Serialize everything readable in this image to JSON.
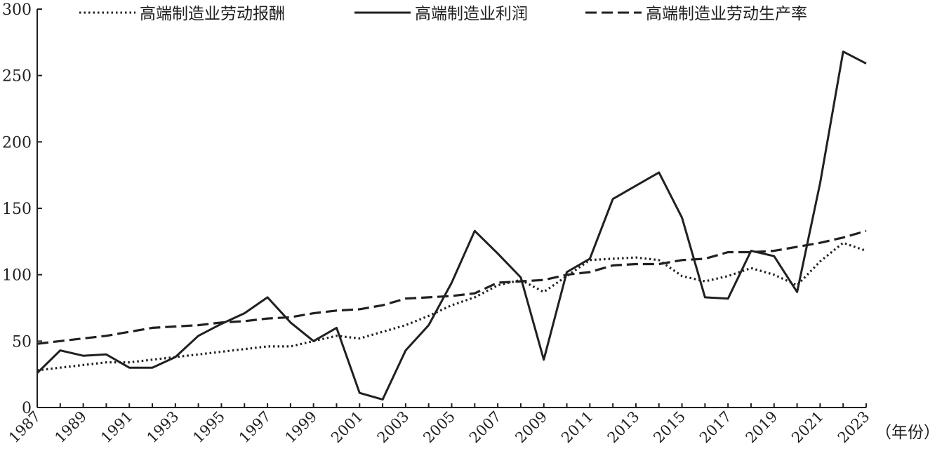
{
  "chart_data": {
    "type": "line",
    "title": "",
    "xlabel": "（年份）",
    "ylabel": "",
    "ylim": [
      0,
      300
    ],
    "yticks": [
      "0",
      "50",
      "100",
      "150",
      "200",
      "250",
      "300"
    ],
    "xlim": [
      1987,
      2023
    ],
    "xticks": [
      "1987",
      "1989",
      "1991",
      "1993",
      "1995",
      "1997",
      "1999",
      "2001",
      "2003",
      "2005",
      "2007",
      "2009",
      "2011",
      "2013",
      "2015",
      "2017",
      "2019",
      "2021",
      "2023"
    ],
    "x": [
      1987,
      1988,
      1989,
      1990,
      1991,
      1992,
      1993,
      1994,
      1995,
      1996,
      1997,
      1998,
      1999,
      2000,
      2001,
      2002,
      2003,
      2004,
      2005,
      2006,
      2007,
      2008,
      2009,
      2010,
      2011,
      2012,
      2013,
      2014,
      2015,
      2016,
      2017,
      2018,
      2019,
      2020,
      2021,
      2022,
      2023
    ],
    "grid": false,
    "legend_position": "top",
    "series": [
      {
        "name": "高端制造业劳动报酬",
        "style": "dotted",
        "color": "#231f20",
        "values": [
          28,
          30,
          32,
          34,
          34,
          36,
          38,
          40,
          42,
          44,
          46,
          46,
          50,
          54,
          52,
          57,
          62,
          69,
          77,
          83,
          92,
          96,
          87,
          99,
          111,
          112,
          113,
          111,
          99,
          95,
          99,
          105,
          100,
          92,
          110,
          124,
          118
        ]
      },
      {
        "name": "高端制造业利润",
        "style": "solid",
        "color": "#231f20",
        "values": [
          26,
          43,
          39,
          40,
          30,
          30,
          38,
          54,
          63,
          71,
          83,
          64,
          50,
          60,
          11,
          6,
          43,
          62,
          94,
          133,
          116,
          98,
          36,
          102,
          112,
          157,
          167,
          177,
          143,
          83,
          82,
          118,
          114,
          87,
          169,
          268,
          259
        ]
      },
      {
        "name": "高端制造业劳动生产率",
        "style": "dashed",
        "color": "#231f20",
        "values": [
          48,
          50,
          52,
          54,
          57,
          60,
          61,
          62,
          64,
          65,
          67,
          68,
          71,
          73,
          74,
          77,
          82,
          83,
          84,
          86,
          94,
          95,
          96,
          100,
          102,
          107,
          108,
          108,
          111,
          112,
          117,
          117,
          118,
          121,
          124,
          128,
          133
        ]
      }
    ]
  }
}
